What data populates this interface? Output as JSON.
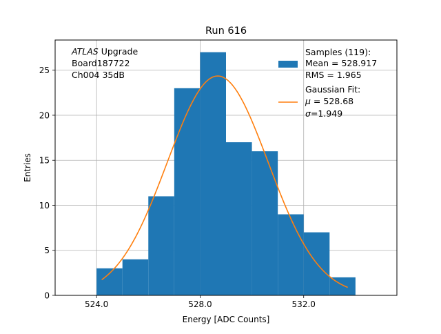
{
  "chart_data": {
    "type": "bar",
    "title": "Run 616",
    "xlabel": "Energy [ADC Counts]",
    "ylabel": "Entries",
    "xlim": [
      522.4,
      535.6
    ],
    "ylim": [
      0,
      28.35
    ],
    "grid": true,
    "x_ticks": [
      524.0,
      528.0,
      532.0
    ],
    "x_tick_labels": [
      "524.0",
      "528.0",
      "532.0"
    ],
    "y_ticks": [
      0,
      5,
      10,
      15,
      20,
      25
    ],
    "y_tick_labels": [
      "0",
      "5",
      "10",
      "15",
      "20",
      "25"
    ],
    "histogram": {
      "name": "Samples",
      "bin_edges": [
        524.0,
        525.0,
        526.0,
        527.0,
        528.0,
        529.0,
        530.0,
        531.0,
        532.0,
        533.0,
        534.0
      ],
      "counts": [
        3,
        4,
        11,
        23,
        27,
        17,
        16,
        9,
        7,
        2
      ],
      "color": "#1f77b4"
    },
    "fit": {
      "name": "Gaussian Fit",
      "mu": 528.68,
      "sigma": 1.949,
      "x_range": [
        524.2,
        533.7
      ],
      "color": "#ff7f0e"
    },
    "annotation": {
      "experiment": "ATLAS",
      "line1_rest": " Upgrade",
      "line2": " Board187722",
      "line3": " Ch004 35dB"
    },
    "legend": {
      "placement": "top-right",
      "samples_label": "Samples (119):",
      "samples_mean": " Mean = 528.917",
      "samples_rms": " RMS = 1.965",
      "fit_label": "Gaussian Fit:",
      "fit_mu_symbol": "μ",
      "fit_mu_rest": " = 528.68",
      "fit_sigma_symbol": "σ",
      "fit_sigma_rest": "=1.949"
    }
  }
}
